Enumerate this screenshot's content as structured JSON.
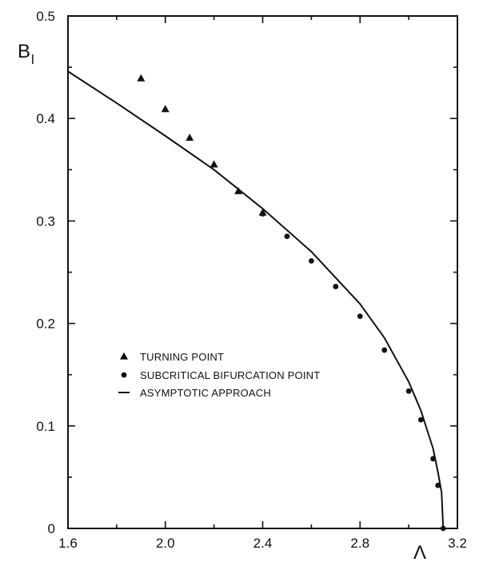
{
  "chart_data": {
    "type": "scatter",
    "xlabel": "Λ",
    "ylabel": {
      "main": "B",
      "sub": "l"
    },
    "xlim": [
      1.6,
      3.2
    ],
    "ylim": [
      0,
      0.5
    ],
    "x_ticks": [
      "1.6",
      "2.0",
      "2.4",
      "2.8",
      "3.2"
    ],
    "x_tick_values": [
      1.6,
      2.0,
      2.4,
      2.8,
      3.2
    ],
    "y_ticks": [
      "0",
      "0.1",
      "0.2",
      "0.3",
      "0.4",
      "0.5"
    ],
    "y_tick_values": [
      0,
      0.1,
      0.2,
      0.3,
      0.4,
      0.5
    ],
    "grid": false,
    "legend_position": "center-left",
    "legend": [
      {
        "marker": "triangle",
        "label": "TURNING POINT"
      },
      {
        "marker": "circle",
        "label": "SUBCRITICAL BIFURCATION POINT"
      },
      {
        "marker": "line",
        "label": "ASYMPTOTIC APPROACH"
      }
    ],
    "series": [
      {
        "marker": "triangle",
        "x": [
          1.9,
          2.0,
          2.1,
          2.2,
          2.3,
          2.4
        ],
        "y": [
          0.439,
          0.409,
          0.381,
          0.355,
          0.329,
          0.308
        ]
      },
      {
        "marker": "circle",
        "x": [
          2.4,
          2.5,
          2.6,
          2.7,
          2.8,
          2.9,
          3.0,
          3.05,
          3.1,
          3.12,
          3.1416
        ],
        "y": [
          0.307,
          0.285,
          0.261,
          0.236,
          0.207,
          0.174,
          0.134,
          0.106,
          0.068,
          0.042,
          0.0
        ]
      },
      {
        "marker": "line",
        "x": [
          1.6,
          1.8,
          2.0,
          2.2,
          2.4,
          2.6,
          2.8,
          2.9,
          3.0,
          3.05,
          3.1,
          3.12,
          3.135,
          3.1416
        ],
        "y": [
          0.446,
          0.415,
          0.383,
          0.35,
          0.312,
          0.27,
          0.219,
          0.186,
          0.143,
          0.115,
          0.078,
          0.055,
          0.035,
          0.0
        ]
      }
    ]
  }
}
